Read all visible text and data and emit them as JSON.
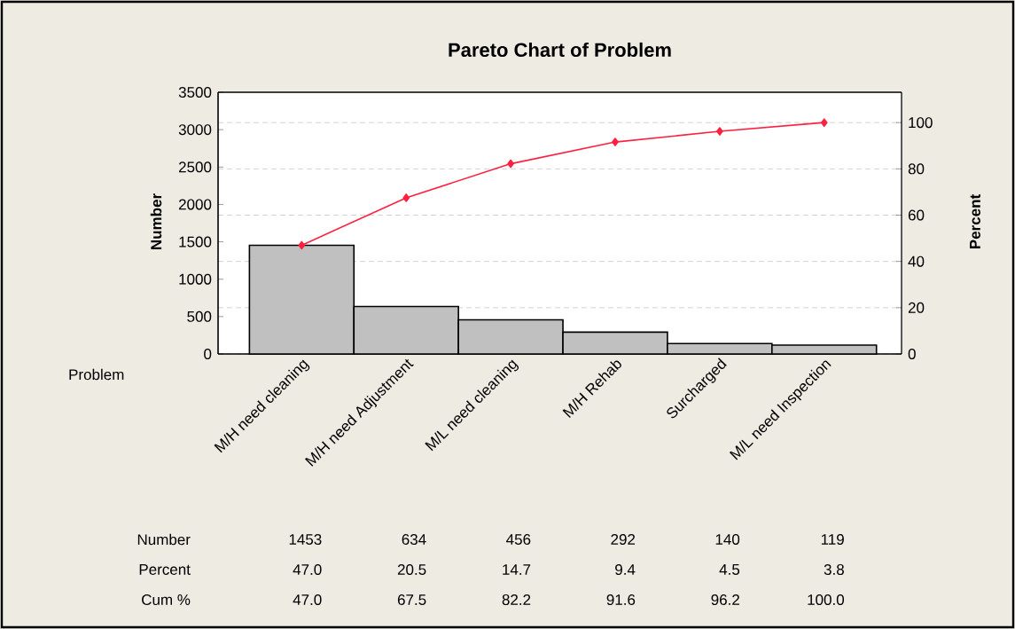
{
  "chart_data": {
    "type": "bar",
    "title": "Pareto Chart of Problem",
    "xlabel": "Problem",
    "ylabel": "Number",
    "y2label": "Percent",
    "categories": [
      "M/H need cleaning",
      "M/H need Adjustment",
      "M/L need cleaning",
      "M/H Rehab",
      "Surcharged",
      "M/L need Inspection"
    ],
    "series": [
      {
        "color": "#c0c0c0",
        "values": [
          1453,
          634,
          456,
          292,
          140,
          119
        ],
        "value_labels": [
          "1453",
          "634",
          "456",
          "292",
          "140",
          "119"
        ]
      },
      {
        "type": "line",
        "axis": "y2",
        "color": "#ff2040",
        "marker": "diamond",
        "line_style": "solid",
        "values": [
          47.0,
          67.5,
          82.2,
          91.6,
          96.2,
          100.0
        ],
        "value_labels": [
          "47.0",
          "67.5",
          "82.2",
          "91.6",
          "96.2",
          "100.0"
        ]
      }
    ],
    "annotations": [
      "Number",
      "Percent",
      "Cum %",
      "47.0",
      "20.5",
      "14.7",
      "9.4",
      "4.5",
      "3.8"
    ],
    "ylim": [
      0,
      3500
    ],
    "yticks": [
      0,
      500,
      1000,
      1500,
      2000,
      2500,
      3000,
      3500
    ],
    "y2lim": [
      0,
      113.1
    ],
    "y2ticks": [
      0,
      20,
      40,
      60,
      80,
      100
    ],
    "grid": "y2"
  }
}
